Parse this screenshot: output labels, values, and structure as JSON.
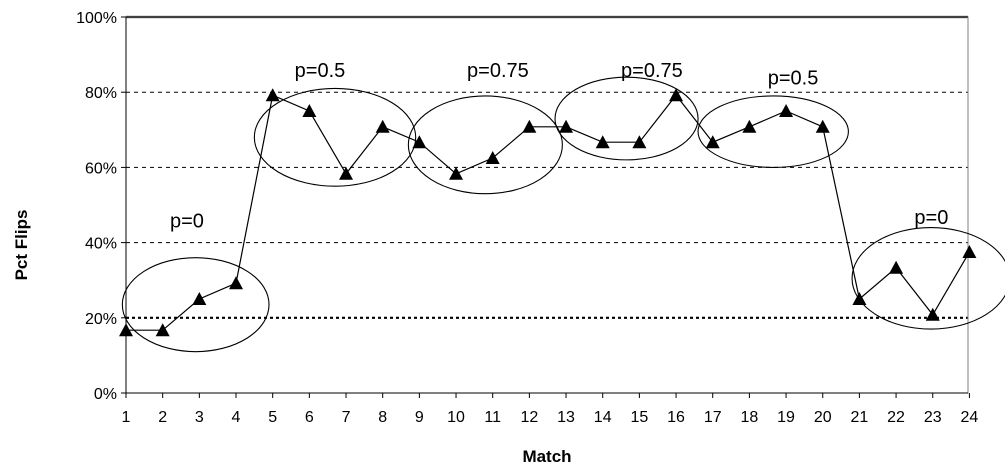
{
  "chart_data": {
    "type": "line",
    "title": "",
    "xlabel": "Match",
    "ylabel": "Pct Flips",
    "x": [
      1,
      2,
      3,
      4,
      5,
      6,
      7,
      8,
      9,
      10,
      11,
      12,
      13,
      14,
      15,
      16,
      17,
      18,
      19,
      20,
      21,
      22,
      23,
      24
    ],
    "x_tick_labels": [
      "1",
      "2",
      "3",
      "4",
      "5",
      "6",
      "7",
      "8",
      "9",
      "10",
      "11",
      "12",
      "13",
      "14",
      "15",
      "16",
      "17",
      "18",
      "19",
      "20",
      "21",
      "22",
      "23",
      "24"
    ],
    "series": [
      {
        "marker": "triangle",
        "values": [
          16.7,
          16.7,
          25,
          29.2,
          79.2,
          75,
          58.3,
          70.8,
          66.7,
          58.3,
          62.5,
          70.8,
          70.8,
          66.7,
          66.7,
          79.2,
          66.7,
          70.8,
          75,
          70.8,
          25,
          33.3,
          20.8,
          37.5
        ]
      }
    ],
    "ylim": [
      0,
      100
    ],
    "y_ticks": [
      0,
      20,
      40,
      60,
      80,
      100
    ],
    "y_tick_labels": [
      "0%",
      "20%",
      "40%",
      "60%",
      "80%",
      "100%"
    ],
    "grid": "horizontal-dashed",
    "legend": "none",
    "annotations": [
      {
        "text": "p=0",
        "label_x": 2.2,
        "label_y": 44,
        "ellipse_x": [
          0.9,
          4.9
        ],
        "ellipse_y": [
          11,
          36
        ]
      },
      {
        "text": "p=0.5",
        "label_x": 5.6,
        "label_y": 84,
        "ellipse_x": [
          4.5,
          8.9
        ],
        "ellipse_y": [
          55,
          81
        ]
      },
      {
        "text": "p=0.75",
        "label_x": 10.3,
        "label_y": 84,
        "ellipse_x": [
          8.7,
          12.9
        ],
        "ellipse_y": [
          53,
          79
        ]
      },
      {
        "text": "p=0.75",
        "label_x": 14.5,
        "label_y": 84,
        "ellipse_x": [
          12.7,
          16.6
        ],
        "ellipse_y": [
          62,
          84
        ]
      },
      {
        "text": "p=0.5",
        "label_x": 18.5,
        "label_y": 82,
        "ellipse_x": [
          16.6,
          20.7
        ],
        "ellipse_y": [
          60,
          79
        ]
      },
      {
        "text": "p=0",
        "label_x": 22.5,
        "label_y": 45,
        "ellipse_x": [
          20.8,
          25.1
        ],
        "ellipse_y": [
          17,
          44
        ]
      }
    ],
    "colors": {
      "line": "#000000",
      "marker": "#000000",
      "ellipse": "#000000",
      "grid": "#000000"
    }
  }
}
